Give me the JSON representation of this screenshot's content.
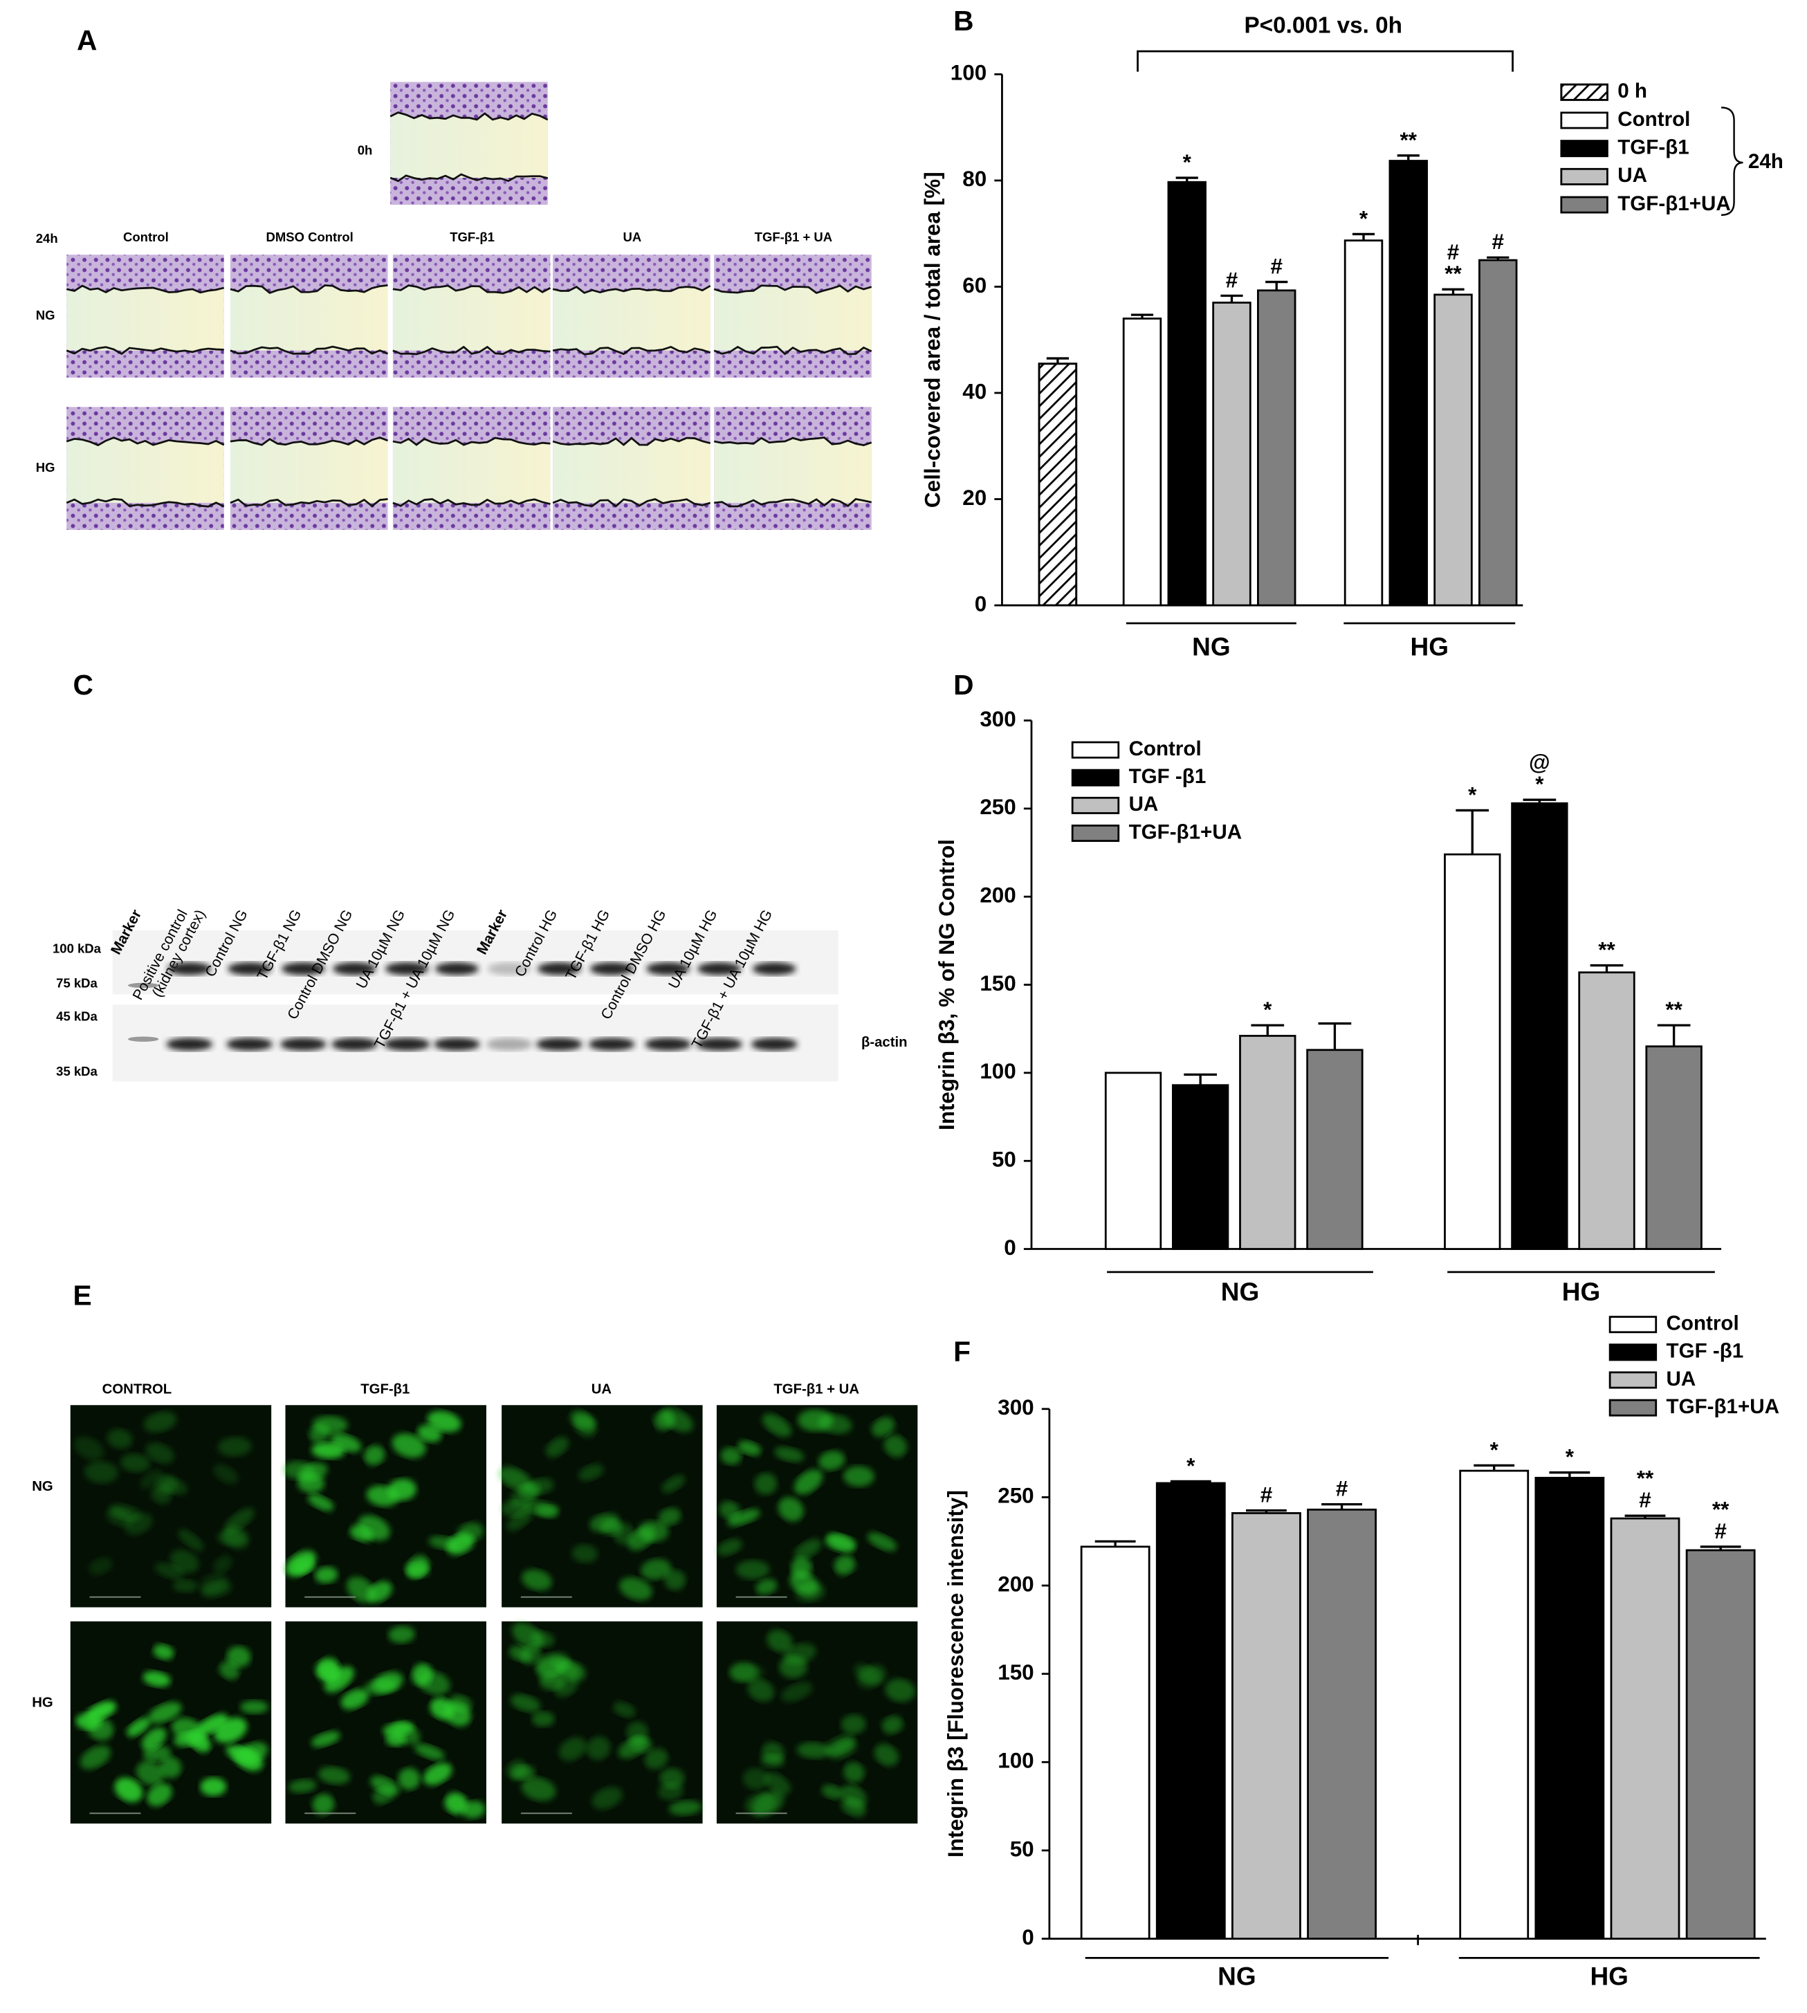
{
  "panels": {
    "a": "A",
    "b": "B",
    "c": "C",
    "d": "D",
    "e": "E",
    "f": "F"
  },
  "panel_a": {
    "time_0": "0h",
    "time_24": "24h",
    "columns": [
      "Control",
      "DMSO Control",
      "TGF-β1",
      "UA",
      "TGF-β1 + UA"
    ],
    "rows": [
      "NG",
      "HG"
    ]
  },
  "panel_c": {
    "lanes": [
      [
        "Marker"
      ],
      [
        "Positive control",
        "(kidney cortex)"
      ],
      [
        "Control NG"
      ],
      [
        "TGF-β1 NG"
      ],
      [
        "Control DMSO NG"
      ],
      [
        "UA 10µM NG"
      ],
      [
        "TGF-β1 + UA 10µM NG"
      ],
      [
        "Marker"
      ],
      [
        "Control HG"
      ],
      [
        "TGF-β1 HG"
      ],
      [
        "Control DMSO HG"
      ],
      [
        "UA 10µM HG"
      ],
      [
        "TGF-β1 + UA 10µM HG"
      ]
    ],
    "sizes": [
      "100 kDa",
      "75 kDa",
      "45 kDa",
      "35 kDa"
    ],
    "protein": "β-actin"
  },
  "panel_e": {
    "columns": [
      "CONTROL",
      "TGF-β1",
      "UA",
      "TGF-β1 + UA"
    ],
    "rows": [
      "NG",
      "HG"
    ]
  },
  "chart_data": [
    {
      "type": "bar",
      "ylabel": "Cell-covered area / total area [%]",
      "categories": [
        null,
        "NG",
        "HG"
      ],
      "ylim": [
        0,
        100
      ],
      "yticks": [
        0,
        20,
        40,
        60,
        80,
        100
      ],
      "annotation": "P<0.001 vs. 0h",
      "legend_group": "24h",
      "series": [
        {
          "name": "0 h",
          "color": "#ffffff",
          "hatch": true,
          "values": [
            45.5,
            null,
            null
          ],
          "errors": [
            1,
            null,
            null
          ]
        },
        {
          "name": "Control",
          "color": "#ffffff",
          "values": [
            null,
            54,
            68.7
          ],
          "errors": [
            null,
            0.7,
            1.2
          ],
          "annotations": [
            null,
            null,
            [
              "*"
            ]
          ]
        },
        {
          "name": "TGF-β1",
          "color": "#000000",
          "values": [
            null,
            79.7,
            83.7
          ],
          "errors": [
            null,
            0.8,
            1
          ],
          "annotations": [
            null,
            [
              "*"
            ],
            [
              "**"
            ]
          ]
        },
        {
          "name": "UA",
          "color": "#c0c0c0",
          "values": [
            null,
            57,
            58.5
          ],
          "errors": [
            null,
            1.3,
            1
          ],
          "annotations": [
            null,
            [
              "#"
            ],
            [
              "#",
              "**"
            ]
          ]
        },
        {
          "name": "TGF-β1+UA",
          "color": "#808080",
          "values": [
            null,
            59.3,
            65
          ],
          "errors": [
            null,
            1.6,
            0.5
          ],
          "annotations": [
            null,
            [
              "#"
            ],
            [
              "#"
            ]
          ]
        }
      ]
    },
    {
      "type": "bar",
      "ylabel": "Integrin β3, % of  NG Control",
      "categories": [
        "NG",
        "HG"
      ],
      "ylim": [
        0,
        300
      ],
      "yticks": [
        0,
        50,
        100,
        150,
        200,
        250,
        300
      ],
      "series": [
        {
          "name": "Control",
          "color": "#ffffff",
          "values": [
            100,
            224
          ],
          "errors": [
            null,
            25
          ],
          "annotations": [
            null,
            [
              "*"
            ]
          ]
        },
        {
          "name": "TGF -β1",
          "color": "#000000",
          "values": [
            93,
            253
          ],
          "errors": [
            6,
            2
          ],
          "annotations": [
            null,
            [
              "@",
              "*"
            ]
          ]
        },
        {
          "name": "UA",
          "color": "#c0c0c0",
          "values": [
            121,
            157
          ],
          "errors": [
            6,
            4
          ],
          "annotations": [
            [
              "*"
            ],
            [
              "**"
            ]
          ]
        },
        {
          "name": "TGF-β1+UA",
          "color": "#808080",
          "values": [
            113,
            115
          ],
          "errors": [
            15,
            12
          ],
          "annotations": [
            null,
            [
              "**"
            ]
          ]
        }
      ]
    },
    {
      "type": "bar",
      "ylabel": "Integrin β3 [Fluorescence intensity]",
      "categories": [
        "NG",
        "HG"
      ],
      "ylim": [
        0,
        300
      ],
      "yticks": [
        0,
        50,
        100,
        150,
        200,
        250,
        300
      ],
      "series": [
        {
          "name": "Control",
          "color": "#ffffff",
          "values": [
            222,
            265
          ],
          "errors": [
            3,
            3
          ],
          "annotations": [
            null,
            [
              "*"
            ]
          ]
        },
        {
          "name": "TGF -β1",
          "color": "#000000",
          "values": [
            258,
            261
          ],
          "errors": [
            1,
            3
          ],
          "annotations": [
            [
              "*"
            ],
            [
              "*"
            ]
          ]
        },
        {
          "name": "UA",
          "color": "#c0c0c0",
          "values": [
            241,
            238
          ],
          "errors": [
            1.5,
            1.5
          ],
          "annotations": [
            [
              "#"
            ],
            [
              "**",
              "#"
            ]
          ]
        },
        {
          "name": "TGF-β1+UA",
          "color": "#808080",
          "values": [
            243,
            220
          ],
          "errors": [
            3,
            2
          ],
          "annotations": [
            [
              "#"
            ],
            [
              "**",
              "#"
            ]
          ]
        }
      ]
    }
  ]
}
